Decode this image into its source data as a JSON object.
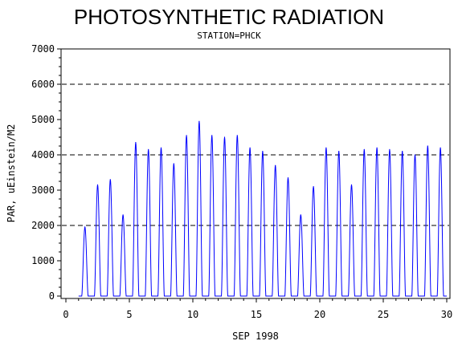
{
  "chart_data": {
    "type": "line",
    "title": "PHOTOSYNTHETIC RADIATION",
    "subtitle": "STATION=PHCK",
    "xlabel": "SEP 1998",
    "ylabel": "PAR, uEinstein/M2",
    "xlim": [
      0,
      30
    ],
    "ylim": [
      0,
      7000
    ],
    "xticks": [
      0,
      5,
      10,
      15,
      20,
      25,
      30
    ],
    "yticks": [
      0,
      1000,
      2000,
      3000,
      4000,
      5000,
      6000,
      7000
    ],
    "reference_lines_y": [
      2000,
      4000,
      6000
    ],
    "line_color": "#0000ff",
    "series": [
      {
        "daily_peaks": [
          {
            "day": 1,
            "peak": 1950
          },
          {
            "day": 2,
            "peak": 3150
          },
          {
            "day": 3,
            "peak": 3300
          },
          {
            "day": 4,
            "peak": 2300
          },
          {
            "day": 5,
            "peak": 4350
          },
          {
            "day": 6,
            "peak": 4150
          },
          {
            "day": 7,
            "peak": 4200
          },
          {
            "day": 8,
            "peak": 3750
          },
          {
            "day": 9,
            "peak": 4550
          },
          {
            "day": 10,
            "peak": 4950
          },
          {
            "day": 11,
            "peak": 4550
          },
          {
            "day": 12,
            "peak": 4500
          },
          {
            "day": 13,
            "peak": 4550
          },
          {
            "day": 14,
            "peak": 4200
          },
          {
            "day": 15,
            "peak": 4100
          },
          {
            "day": 16,
            "peak": 3700
          },
          {
            "day": 17,
            "peak": 3350
          },
          {
            "day": 18,
            "peak": 2300
          },
          {
            "day": 19,
            "peak": 3100
          },
          {
            "day": 20,
            "peak": 4200
          },
          {
            "day": 21,
            "peak": 4100
          },
          {
            "day": 22,
            "peak": 3150
          },
          {
            "day": 23,
            "peak": 4150
          },
          {
            "day": 24,
            "peak": 4200
          },
          {
            "day": 25,
            "peak": 4150
          },
          {
            "day": 26,
            "peak": 4100
          },
          {
            "day": 27,
            "peak": 4000
          },
          {
            "day": 28,
            "peak": 4250
          },
          {
            "day": 29,
            "peak": 4200
          }
        ]
      }
    ]
  }
}
